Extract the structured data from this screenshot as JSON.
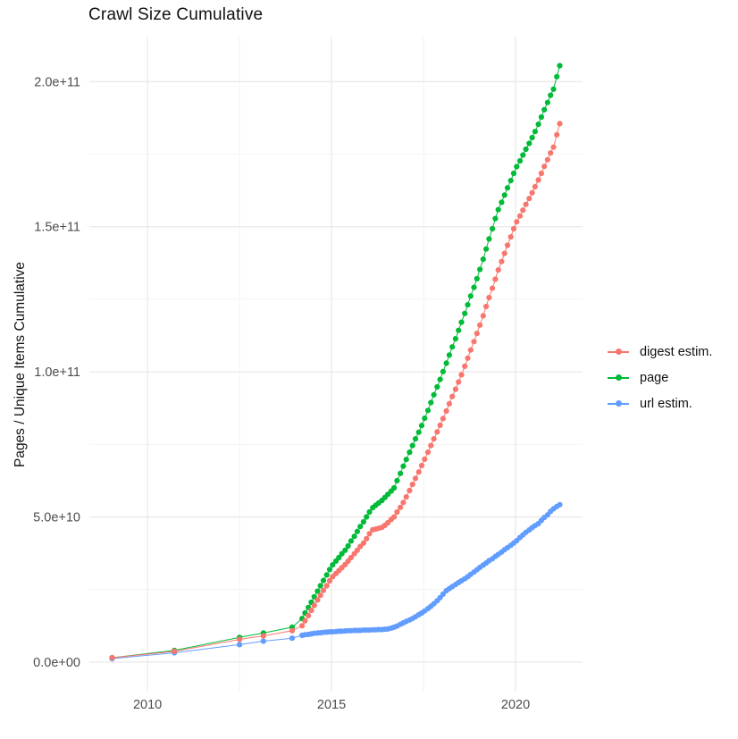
{
  "title": "Crawl Size Cumulative",
  "legend": {
    "position": "right",
    "items": [
      {
        "label": "digest estim.",
        "color": "#F8766D",
        "series": "digest"
      },
      {
        "label": "page",
        "color": "#00BA38",
        "series": "page"
      },
      {
        "label": "url estim.",
        "color": "#619CFF",
        "series": "url"
      }
    ]
  },
  "colors": {
    "grid_major": "#E8E8E8",
    "grid_minor": "#F3F3F3",
    "tick_text": "#4D4D4D",
    "title_text": "#111111"
  },
  "chart_data": {
    "type": "scatter",
    "style": "points-with-line",
    "title": "Crawl Size Cumulative",
    "xlabel": "",
    "ylabel": "Pages / Unique Items Cumulative",
    "value_unit": "1e9 (values below are billions of pages / unique items)",
    "grid": true,
    "legend_position": "right",
    "xlim": [
      2008.42,
      2021.82
    ],
    "ylim_e9": [
      -10.2,
      215.5
    ],
    "x_major_ticks": [
      {
        "value": 2010,
        "label": "2010"
      },
      {
        "value": 2015,
        "label": "2015"
      },
      {
        "value": 2020,
        "label": "2020"
      }
    ],
    "x_minor_ticks": [
      2012.5,
      2017.5
    ],
    "y_major_ticks": [
      {
        "value_e9": 0,
        "label": "0.0e+00"
      },
      {
        "value_e9": 50,
        "label": "5.0e+10"
      },
      {
        "value_e9": 100,
        "label": "1.0e+11"
      },
      {
        "value_e9": 150,
        "label": "1.5e+11"
      },
      {
        "value_e9": 200,
        "label": "2.0e+11"
      }
    ],
    "y_minor_ticks_e9": [
      25,
      75,
      125,
      175
    ],
    "point_radius": 3.1,
    "series": [
      {
        "name": "url estim.",
        "key": "url",
        "color": "#619CFF",
        "points": [
          [
            2009.04,
            1.2
          ],
          [
            2010.73,
            3.2
          ],
          [
            2012.5,
            6.0
          ],
          [
            2013.15,
            7.2
          ],
          [
            2013.93,
            8.2
          ],
          [
            2014.2,
            9.2
          ],
          [
            2014.28,
            9.4
          ],
          [
            2014.37,
            9.5
          ],
          [
            2014.45,
            9.7
          ],
          [
            2014.53,
            9.9
          ],
          [
            2014.62,
            10.0
          ],
          [
            2014.7,
            10.1
          ],
          [
            2014.78,
            10.2
          ],
          [
            2014.87,
            10.3
          ],
          [
            2014.95,
            10.4
          ],
          [
            2015.03,
            10.4
          ],
          [
            2015.12,
            10.5
          ],
          [
            2015.2,
            10.6
          ],
          [
            2015.28,
            10.6
          ],
          [
            2015.37,
            10.7
          ],
          [
            2015.45,
            10.8
          ],
          [
            2015.53,
            10.8
          ],
          [
            2015.62,
            10.9
          ],
          [
            2015.7,
            10.9
          ],
          [
            2015.78,
            10.9
          ],
          [
            2015.87,
            11.0
          ],
          [
            2015.95,
            11.0
          ],
          [
            2016.03,
            11.0
          ],
          [
            2016.12,
            11.1
          ],
          [
            2016.2,
            11.1
          ],
          [
            2016.28,
            11.2
          ],
          [
            2016.37,
            11.2
          ],
          [
            2016.45,
            11.3
          ],
          [
            2016.53,
            11.4
          ],
          [
            2016.62,
            11.7
          ],
          [
            2016.7,
            12.0
          ],
          [
            2016.78,
            12.4
          ],
          [
            2016.87,
            13.0
          ],
          [
            2016.95,
            13.5
          ],
          [
            2017.03,
            14.0
          ],
          [
            2017.12,
            14.5
          ],
          [
            2017.2,
            15.0
          ],
          [
            2017.28,
            15.6
          ],
          [
            2017.37,
            16.3
          ],
          [
            2017.45,
            16.9
          ],
          [
            2017.53,
            17.6
          ],
          [
            2017.62,
            18.4
          ],
          [
            2017.7,
            19.2
          ],
          [
            2017.78,
            20.1
          ],
          [
            2017.87,
            21.1
          ],
          [
            2017.95,
            22.2
          ],
          [
            2018.03,
            23.4
          ],
          [
            2018.12,
            24.6
          ],
          [
            2018.2,
            25.3
          ],
          [
            2018.28,
            26.0
          ],
          [
            2018.37,
            26.7
          ],
          [
            2018.45,
            27.4
          ],
          [
            2018.53,
            28.0
          ],
          [
            2018.62,
            28.7
          ],
          [
            2018.7,
            29.4
          ],
          [
            2018.78,
            30.2
          ],
          [
            2018.87,
            31.0
          ],
          [
            2018.95,
            31.8
          ],
          [
            2019.03,
            32.6
          ],
          [
            2019.12,
            33.4
          ],
          [
            2019.2,
            34.1
          ],
          [
            2019.28,
            34.9
          ],
          [
            2019.37,
            35.6
          ],
          [
            2019.45,
            36.4
          ],
          [
            2019.53,
            37.1
          ],
          [
            2019.62,
            37.9
          ],
          [
            2019.7,
            38.7
          ],
          [
            2019.78,
            39.4
          ],
          [
            2019.87,
            40.2
          ],
          [
            2019.95,
            41.0
          ],
          [
            2020.03,
            41.8
          ],
          [
            2020.12,
            42.9
          ],
          [
            2020.2,
            43.8
          ],
          [
            2020.28,
            44.7
          ],
          [
            2020.37,
            45.5
          ],
          [
            2020.45,
            46.3
          ],
          [
            2020.53,
            47.0
          ],
          [
            2020.62,
            47.7
          ],
          [
            2020.7,
            48.8
          ],
          [
            2020.78,
            49.8
          ],
          [
            2020.87,
            50.7
          ],
          [
            2020.95,
            51.9
          ],
          [
            2021.03,
            52.8
          ],
          [
            2021.12,
            53.6
          ],
          [
            2021.2,
            54.2
          ]
        ]
      },
      {
        "name": "page",
        "key": "page",
        "color": "#00BA38",
        "points": [
          [
            2009.04,
            1.5
          ],
          [
            2010.73,
            4.0
          ],
          [
            2012.5,
            8.5
          ],
          [
            2013.15,
            10.0
          ],
          [
            2013.93,
            12.0
          ],
          [
            2014.2,
            15.0
          ],
          [
            2014.28,
            16.9
          ],
          [
            2014.37,
            18.8
          ],
          [
            2014.45,
            20.6
          ],
          [
            2014.53,
            22.5
          ],
          [
            2014.62,
            24.4
          ],
          [
            2014.7,
            26.3
          ],
          [
            2014.78,
            28.1
          ],
          [
            2014.87,
            30.0
          ],
          [
            2014.95,
            31.9
          ],
          [
            2015.03,
            33.5
          ],
          [
            2015.12,
            34.8
          ],
          [
            2015.2,
            36.0
          ],
          [
            2015.28,
            37.3
          ],
          [
            2015.37,
            38.5
          ],
          [
            2015.45,
            40.0
          ],
          [
            2015.53,
            41.7
          ],
          [
            2015.62,
            43.3
          ],
          [
            2015.7,
            45.0
          ],
          [
            2015.78,
            46.7
          ],
          [
            2015.87,
            48.3
          ],
          [
            2015.95,
            50.0
          ],
          [
            2016.03,
            51.7
          ],
          [
            2016.12,
            53.2
          ],
          [
            2016.2,
            54.0
          ],
          [
            2016.28,
            54.8
          ],
          [
            2016.37,
            55.7
          ],
          [
            2016.45,
            56.7
          ],
          [
            2016.53,
            57.8
          ],
          [
            2016.62,
            58.9
          ],
          [
            2016.7,
            60.0
          ],
          [
            2016.78,
            62.5
          ],
          [
            2016.87,
            65.0
          ],
          [
            2016.95,
            67.5
          ],
          [
            2017.03,
            69.8
          ],
          [
            2017.12,
            72.3
          ],
          [
            2017.2,
            74.6
          ],
          [
            2017.28,
            76.9
          ],
          [
            2017.37,
            79.2
          ],
          [
            2017.45,
            81.5
          ],
          [
            2017.53,
            84.0
          ],
          [
            2017.62,
            86.7
          ],
          [
            2017.7,
            89.4
          ],
          [
            2017.78,
            92.1
          ],
          [
            2017.87,
            94.8
          ],
          [
            2017.95,
            97.4
          ],
          [
            2018.03,
            100.1
          ],
          [
            2018.12,
            103.0
          ],
          [
            2018.2,
            105.8
          ],
          [
            2018.28,
            108.6
          ],
          [
            2018.37,
            111.4
          ],
          [
            2018.45,
            114.3
          ],
          [
            2018.53,
            117.1
          ],
          [
            2018.62,
            120.1
          ],
          [
            2018.7,
            123.1
          ],
          [
            2018.78,
            126.1
          ],
          [
            2018.87,
            129.1
          ],
          [
            2018.95,
            132.1
          ],
          [
            2019.03,
            135.3
          ],
          [
            2019.12,
            138.8
          ],
          [
            2019.2,
            142.3
          ],
          [
            2019.28,
            145.8
          ],
          [
            2019.37,
            149.3
          ],
          [
            2019.45,
            152.8
          ],
          [
            2019.53,
            155.9
          ],
          [
            2019.62,
            158.4
          ],
          [
            2019.7,
            160.9
          ],
          [
            2019.78,
            163.4
          ],
          [
            2019.87,
            165.9
          ],
          [
            2019.95,
            168.4
          ],
          [
            2020.03,
            170.7
          ],
          [
            2020.12,
            172.7
          ],
          [
            2020.2,
            174.7
          ],
          [
            2020.28,
            176.7
          ],
          [
            2020.37,
            178.7
          ],
          [
            2020.45,
            180.7
          ],
          [
            2020.53,
            182.8
          ],
          [
            2020.62,
            185.3
          ],
          [
            2020.7,
            187.8
          ],
          [
            2020.78,
            190.3
          ],
          [
            2020.87,
            192.8
          ],
          [
            2020.95,
            195.3
          ],
          [
            2021.03,
            197.4
          ],
          [
            2021.12,
            201.7
          ],
          [
            2021.2,
            205.5
          ]
        ]
      },
      {
        "name": "digest estim.",
        "key": "digest",
        "color": "#F8766D",
        "points": [
          [
            2009.04,
            1.5
          ],
          [
            2010.73,
            3.7
          ],
          [
            2012.5,
            7.8
          ],
          [
            2013.15,
            9.0
          ],
          [
            2013.93,
            10.8
          ],
          [
            2014.2,
            12.5
          ],
          [
            2014.28,
            14.2
          ],
          [
            2014.37,
            16.0
          ],
          [
            2014.45,
            17.8
          ],
          [
            2014.53,
            19.5
          ],
          [
            2014.62,
            21.4
          ],
          [
            2014.7,
            23.0
          ],
          [
            2014.78,
            24.7
          ],
          [
            2014.87,
            26.3
          ],
          [
            2014.95,
            28.0
          ],
          [
            2015.03,
            29.4
          ],
          [
            2015.12,
            30.5
          ],
          [
            2015.2,
            31.5
          ],
          [
            2015.28,
            32.5
          ],
          [
            2015.37,
            33.6
          ],
          [
            2015.45,
            34.8
          ],
          [
            2015.53,
            36.0
          ],
          [
            2015.62,
            37.3
          ],
          [
            2015.7,
            38.5
          ],
          [
            2015.78,
            39.8
          ],
          [
            2015.87,
            41.0
          ],
          [
            2015.95,
            42.5
          ],
          [
            2016.03,
            44.2
          ],
          [
            2016.12,
            45.6
          ],
          [
            2016.2,
            45.8
          ],
          [
            2016.28,
            46.1
          ],
          [
            2016.37,
            46.4
          ],
          [
            2016.45,
            47.1
          ],
          [
            2016.53,
            48.0
          ],
          [
            2016.62,
            49.1
          ],
          [
            2016.7,
            50.0
          ],
          [
            2016.78,
            51.7
          ],
          [
            2016.87,
            53.3
          ],
          [
            2016.95,
            55.0
          ],
          [
            2017.03,
            56.9
          ],
          [
            2017.12,
            59.1
          ],
          [
            2017.2,
            61.2
          ],
          [
            2017.28,
            63.3
          ],
          [
            2017.37,
            65.5
          ],
          [
            2017.45,
            67.7
          ],
          [
            2017.53,
            69.9
          ],
          [
            2017.62,
            72.3
          ],
          [
            2017.7,
            74.6
          ],
          [
            2017.78,
            76.9
          ],
          [
            2017.87,
            79.3
          ],
          [
            2017.95,
            81.6
          ],
          [
            2018.03,
            83.9
          ],
          [
            2018.12,
            86.5
          ],
          [
            2018.2,
            89.0
          ],
          [
            2018.28,
            91.5
          ],
          [
            2018.37,
            94.0
          ],
          [
            2018.45,
            96.5
          ],
          [
            2018.53,
            99.0
          ],
          [
            2018.62,
            101.9
          ],
          [
            2018.7,
            104.7
          ],
          [
            2018.78,
            107.5
          ],
          [
            2018.87,
            110.4
          ],
          [
            2018.95,
            113.2
          ],
          [
            2019.03,
            116.1
          ],
          [
            2019.12,
            119.3
          ],
          [
            2019.2,
            122.5
          ],
          [
            2019.28,
            125.6
          ],
          [
            2019.37,
            128.8
          ],
          [
            2019.45,
            131.9
          ],
          [
            2019.53,
            135.1
          ],
          [
            2019.62,
            138.0
          ],
          [
            2019.7,
            140.8
          ],
          [
            2019.78,
            143.6
          ],
          [
            2019.87,
            146.5
          ],
          [
            2019.95,
            149.3
          ],
          [
            2020.03,
            151.7
          ],
          [
            2020.12,
            153.7
          ],
          [
            2020.2,
            155.7
          ],
          [
            2020.28,
            157.7
          ],
          [
            2020.37,
            159.7
          ],
          [
            2020.45,
            161.7
          ],
          [
            2020.53,
            163.8
          ],
          [
            2020.62,
            166.1
          ],
          [
            2020.7,
            168.4
          ],
          [
            2020.78,
            170.8
          ],
          [
            2020.87,
            173.1
          ],
          [
            2020.95,
            175.4
          ],
          [
            2021.03,
            177.4
          ],
          [
            2021.12,
            181.7
          ],
          [
            2021.2,
            185.5
          ]
        ]
      }
    ]
  }
}
